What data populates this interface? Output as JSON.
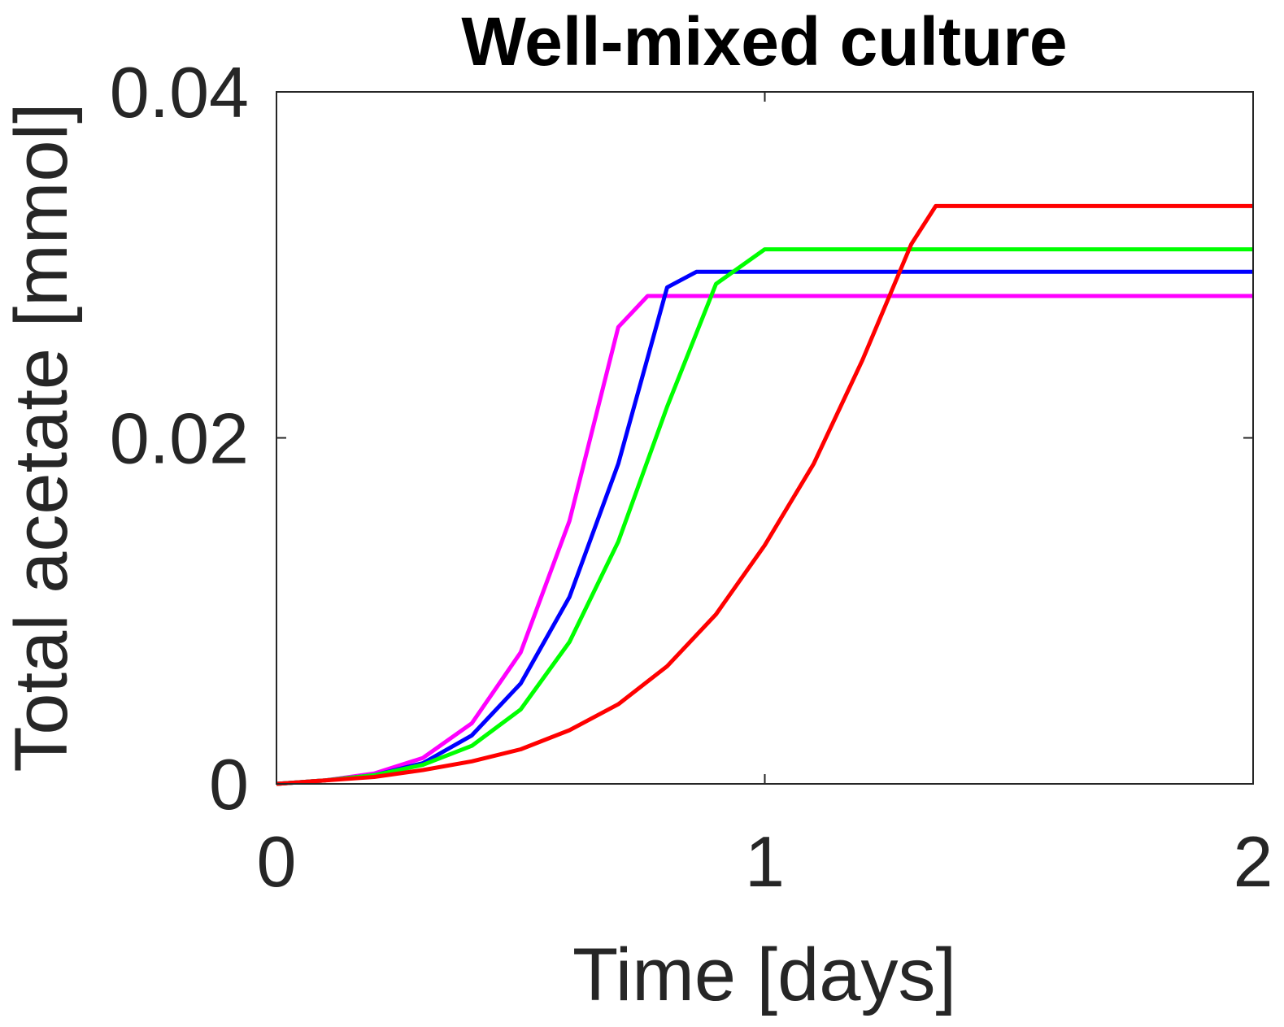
{
  "chart_data": {
    "type": "line",
    "title": "Well-mixed culture",
    "xlabel": "Time [days]",
    "ylabel": "Total acetate [mmol]",
    "xlim": [
      0,
      2
    ],
    "ylim": [
      0,
      0.04
    ],
    "xticks": [
      0,
      1,
      2
    ],
    "xtick_labels": [
      "0",
      "1",
      "2"
    ],
    "yticks": [
      0,
      0.02,
      0.04
    ],
    "ytick_labels": [
      "0",
      "0.02",
      "0.04"
    ],
    "grid": false,
    "series": [
      {
        "color": "#ff00ff",
        "points": [
          [
            0,
            0
          ],
          [
            0.1,
            0.0002
          ],
          [
            0.2,
            0.0006
          ],
          [
            0.3,
            0.0015
          ],
          [
            0.4,
            0.0035
          ],
          [
            0.5,
            0.0076
          ],
          [
            0.6,
            0.0152
          ],
          [
            0.7,
            0.0264
          ],
          [
            0.76,
            0.0282
          ],
          [
            2.0,
            0.0282
          ]
        ]
      },
      {
        "color": "#0000ff",
        "points": [
          [
            0,
            0
          ],
          [
            0.1,
            0.0002
          ],
          [
            0.2,
            0.0005
          ],
          [
            0.3,
            0.0012
          ],
          [
            0.4,
            0.0028
          ],
          [
            0.5,
            0.0058
          ],
          [
            0.6,
            0.0108
          ],
          [
            0.7,
            0.0185
          ],
          [
            0.8,
            0.0287
          ],
          [
            0.86,
            0.0296
          ],
          [
            2.0,
            0.0296
          ]
        ]
      },
      {
        "color": "#00ff00",
        "points": [
          [
            0,
            0
          ],
          [
            0.1,
            0.0002
          ],
          [
            0.2,
            0.0005
          ],
          [
            0.3,
            0.0011
          ],
          [
            0.4,
            0.0022
          ],
          [
            0.5,
            0.0043
          ],
          [
            0.6,
            0.0082
          ],
          [
            0.7,
            0.014
          ],
          [
            0.8,
            0.0218
          ],
          [
            0.9,
            0.0289
          ],
          [
            1.0,
            0.0309
          ],
          [
            2.0,
            0.0309
          ]
        ]
      },
      {
        "color": "#ff0000",
        "points": [
          [
            0,
            0
          ],
          [
            0.1,
            0.0002
          ],
          [
            0.2,
            0.0004
          ],
          [
            0.3,
            0.0008
          ],
          [
            0.4,
            0.0013
          ],
          [
            0.5,
            0.002
          ],
          [
            0.6,
            0.0031
          ],
          [
            0.7,
            0.0046
          ],
          [
            0.8,
            0.0068
          ],
          [
            0.9,
            0.0098
          ],
          [
            1.0,
            0.0138
          ],
          [
            1.1,
            0.0185
          ],
          [
            1.2,
            0.0245
          ],
          [
            1.3,
            0.0312
          ],
          [
            1.35,
            0.0334
          ],
          [
            2.0,
            0.0334
          ]
        ]
      }
    ]
  }
}
